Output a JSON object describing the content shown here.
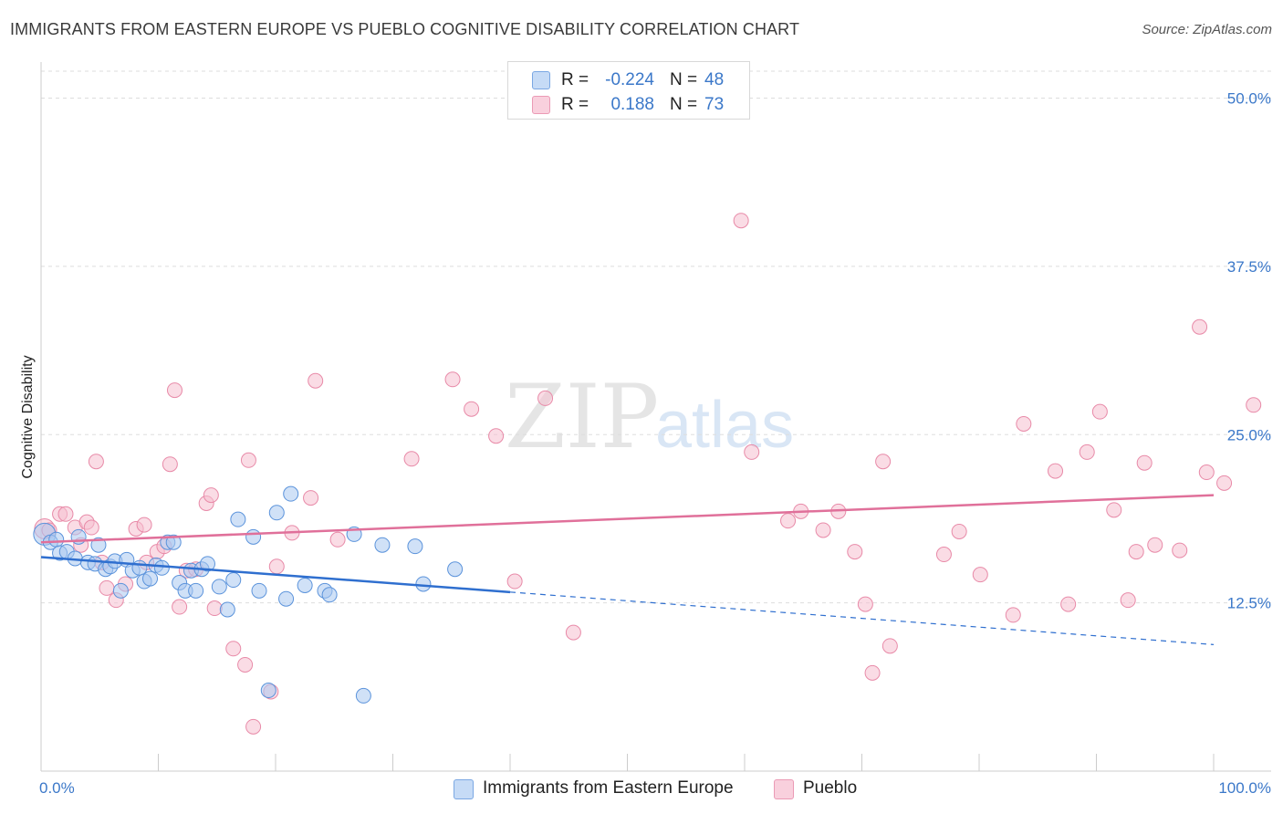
{
  "title": "IMMIGRANTS FROM EASTERN EUROPE VS PUEBLO COGNITIVE DISABILITY CORRELATION CHART",
  "source": "Source: ZipAtlas.com",
  "watermark": {
    "zip": "ZIP",
    "atlas": "atlas"
  },
  "colors": {
    "blue_fill": "#a9c8f0",
    "blue_stroke": "#5b93db",
    "blue_line": "#2f6fcf",
    "pink_fill": "#f6bfd0",
    "pink_stroke": "#e88aa8",
    "pink_line": "#e0709a",
    "axis_label": "#3b78c9",
    "grid": "#dddddd"
  },
  "legend": {
    "rows": [
      {
        "r_label": "R =",
        "r_value": "-0.224",
        "n_label": "N =",
        "n_value": "48"
      },
      {
        "r_label": "R =",
        "r_value": "0.188",
        "n_label": "N =",
        "n_value": "73"
      }
    ]
  },
  "bottom_legend": [
    "Immigrants from Eastern Europe",
    "Pueblo"
  ],
  "chart_data": {
    "type": "scatter",
    "title": "IMMIGRANTS FROM EASTERN EUROPE VS PUEBLO COGNITIVE DISABILITY CORRELATION CHART",
    "xlabel": "",
    "ylabel": "Cognitive Disability",
    "xlim": [
      0,
      100
    ],
    "ylim": [
      0,
      52
    ],
    "x_tick_labels": [
      "0.0%",
      "100.0%"
    ],
    "y_ticks": [
      12.5,
      25.0,
      37.5,
      50.0
    ],
    "y_tick_labels": [
      "12.5%",
      "25.0%",
      "37.5%",
      "50.0%"
    ],
    "grid": true,
    "series": [
      {
        "name": "Immigrants from Eastern Europe",
        "r": -0.224,
        "n": 48,
        "trend": {
          "x0": 0,
          "y0": 15.9,
          "x1": 40,
          "y1": 13.3,
          "dash_x1": 100,
          "dash_y1": 9.4
        },
        "points": [
          [
            0.3,
            17.6
          ],
          [
            0.8,
            17.0
          ],
          [
            1.3,
            17.2
          ],
          [
            1.6,
            16.2
          ],
          [
            2.2,
            16.3
          ],
          [
            2.9,
            15.8
          ],
          [
            3.2,
            17.4
          ],
          [
            4.0,
            15.5
          ],
          [
            4.6,
            15.4
          ],
          [
            4.9,
            16.8
          ],
          [
            5.5,
            15.0
          ],
          [
            5.9,
            15.2
          ],
          [
            6.3,
            15.6
          ],
          [
            6.8,
            13.4
          ],
          [
            7.3,
            15.7
          ],
          [
            7.8,
            14.9
          ],
          [
            8.4,
            15.1
          ],
          [
            8.8,
            14.1
          ],
          [
            9.3,
            14.3
          ],
          [
            9.8,
            15.3
          ],
          [
            10.3,
            15.1
          ],
          [
            10.8,
            17.0
          ],
          [
            11.3,
            17.0
          ],
          [
            11.8,
            14.0
          ],
          [
            12.3,
            13.4
          ],
          [
            12.8,
            14.9
          ],
          [
            13.2,
            13.4
          ],
          [
            13.7,
            15.0
          ],
          [
            14.2,
            15.4
          ],
          [
            15.2,
            13.7
          ],
          [
            15.9,
            12.0
          ],
          [
            16.4,
            14.2
          ],
          [
            16.8,
            18.7
          ],
          [
            18.1,
            17.4
          ],
          [
            18.6,
            13.4
          ],
          [
            19.4,
            6.0
          ],
          [
            20.1,
            19.2
          ],
          [
            20.9,
            12.8
          ],
          [
            21.3,
            20.6
          ],
          [
            22.5,
            13.8
          ],
          [
            24.2,
            13.4
          ],
          [
            24.6,
            13.1
          ],
          [
            26.7,
            17.6
          ],
          [
            29.1,
            16.8
          ],
          [
            31.9,
            16.7
          ],
          [
            32.6,
            13.9
          ],
          [
            35.3,
            15.0
          ],
          [
            27.5,
            5.6
          ]
        ]
      },
      {
        "name": "Pueblo",
        "r": 0.188,
        "n": 73,
        "trend": {
          "x0": 0,
          "y0": 17.0,
          "x1": 100,
          "y1": 20.5
        },
        "points": [
          [
            0.3,
            18.0
          ],
          [
            0.7,
            17.9
          ],
          [
            1.6,
            19.1
          ],
          [
            2.1,
            19.1
          ],
          [
            2.9,
            18.1
          ],
          [
            3.4,
            16.8
          ],
          [
            3.9,
            18.5
          ],
          [
            4.3,
            18.1
          ],
          [
            4.7,
            23.0
          ],
          [
            5.2,
            15.5
          ],
          [
            5.6,
            13.6
          ],
          [
            6.4,
            12.7
          ],
          [
            7.2,
            13.9
          ],
          [
            8.1,
            18.0
          ],
          [
            8.8,
            18.3
          ],
          [
            9.0,
            15.5
          ],
          [
            9.9,
            16.3
          ],
          [
            10.5,
            16.7
          ],
          [
            11.0,
            22.8
          ],
          [
            11.4,
            28.3
          ],
          [
            11.8,
            12.2
          ],
          [
            12.4,
            14.9
          ],
          [
            13.2,
            15.0
          ],
          [
            14.1,
            19.9
          ],
          [
            14.5,
            20.5
          ],
          [
            14.8,
            12.1
          ],
          [
            16.4,
            9.1
          ],
          [
            17.4,
            7.9
          ],
          [
            17.7,
            23.1
          ],
          [
            18.1,
            3.3
          ],
          [
            19.6,
            5.9
          ],
          [
            20.1,
            15.2
          ],
          [
            21.4,
            17.7
          ],
          [
            23.0,
            20.3
          ],
          [
            23.4,
            29.0
          ],
          [
            25.3,
            17.2
          ],
          [
            31.6,
            23.2
          ],
          [
            35.1,
            29.1
          ],
          [
            36.7,
            26.9
          ],
          [
            38.8,
            24.9
          ],
          [
            40.4,
            14.1
          ],
          [
            43.0,
            27.7
          ],
          [
            45.4,
            10.3
          ],
          [
            59.7,
            40.9
          ],
          [
            60.6,
            23.7
          ],
          [
            63.7,
            18.6
          ],
          [
            64.8,
            19.3
          ],
          [
            66.7,
            17.9
          ],
          [
            68.0,
            19.3
          ],
          [
            69.4,
            16.3
          ],
          [
            70.3,
            12.4
          ],
          [
            70.9,
            7.3
          ],
          [
            71.8,
            23.0
          ],
          [
            72.4,
            9.3
          ],
          [
            77.0,
            16.1
          ],
          [
            78.3,
            17.8
          ],
          [
            80.1,
            14.6
          ],
          [
            82.9,
            11.6
          ],
          [
            83.8,
            25.8
          ],
          [
            86.5,
            22.3
          ],
          [
            87.6,
            12.4
          ],
          [
            89.2,
            23.7
          ],
          [
            90.3,
            26.7
          ],
          [
            91.5,
            19.4
          ],
          [
            92.7,
            12.7
          ],
          [
            93.4,
            16.3
          ],
          [
            94.1,
            22.9
          ],
          [
            95.0,
            16.8
          ],
          [
            97.1,
            16.4
          ],
          [
            98.8,
            33.0
          ],
          [
            99.4,
            22.2
          ],
          [
            100.9,
            21.4
          ],
          [
            103.4,
            27.2
          ]
        ]
      }
    ]
  }
}
